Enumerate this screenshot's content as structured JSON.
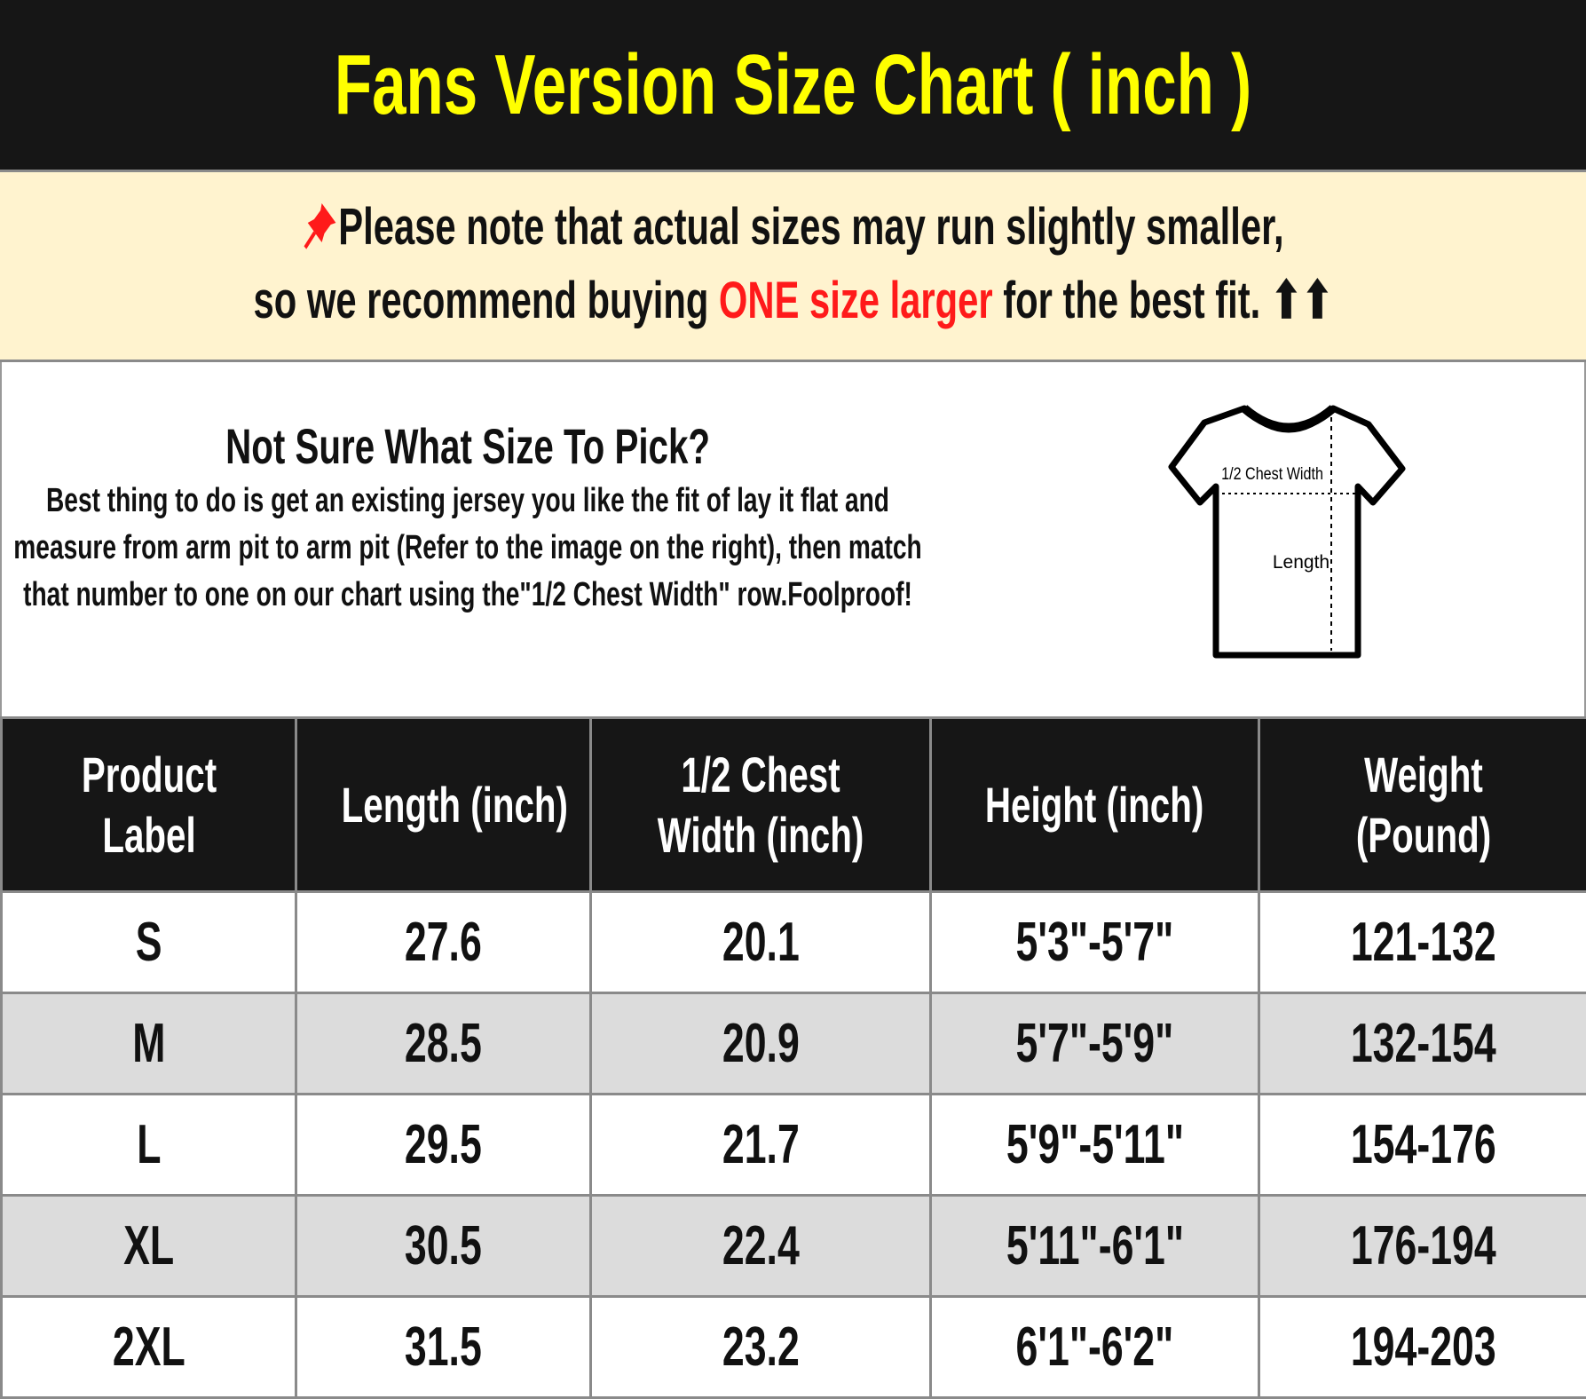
{
  "title": "Fans Version Size Chart ( inch )",
  "note": {
    "pin_icon": "pushpin-icon",
    "line1": "Please note that actual sizes may run slightly smaller,",
    "line2_before": "so we recommend buying ",
    "line2_highlight": "ONE size larger",
    "line2_after": " for the best fit. ⬆⬆",
    "highlight_color": "#ff1a1a"
  },
  "info": {
    "heading": "Not Sure What Size To Pick?",
    "body": "Best thing to do is get an existing jersey you like the fit of lay it flat and measure from arm pit to arm pit (Refer to the image on the right), then match that number to one on our chart using the\"1/2 Chest Width\" row.Foolproof!",
    "diagram": {
      "chest_label": "1/2 Chest Width",
      "length_label": "Length"
    }
  },
  "table": {
    "headers": [
      "Product Label",
      "Length (inch)",
      "1/2 Chest Width (inch)",
      "Height (inch)",
      "Weight (Pound)"
    ],
    "rows": [
      [
        "S",
        "27.6",
        "20.1",
        "5'3\"-5'7\"",
        "121-132"
      ],
      [
        "M",
        "28.5",
        "20.9",
        "5'7\"-5'9\"",
        "132-154"
      ],
      [
        "L",
        "29.5",
        "21.7",
        "5'9\"-5'11\"",
        "154-176"
      ],
      [
        "XL",
        "30.5",
        "22.4",
        "5'11\"-6'1\"",
        "176-194"
      ],
      [
        "2XL",
        "31.5",
        "23.2",
        "6'1\"-6'2\"",
        "194-203"
      ]
    ]
  }
}
